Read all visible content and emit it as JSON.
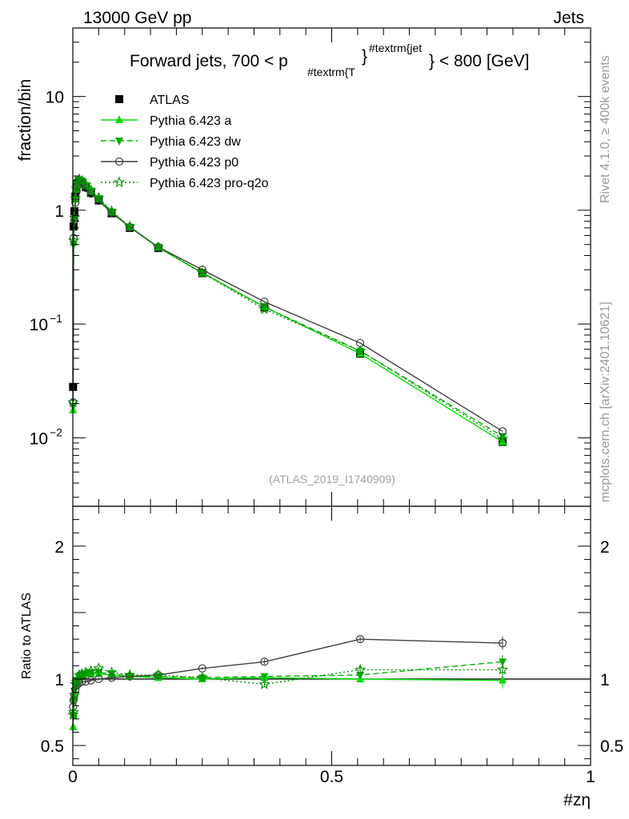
{
  "header": {
    "left": "13000 GeV pp",
    "right": "Jets",
    "title_main": "Forward jets, 700 < p",
    "title_sub": "#textrm{T",
    "title_sup": "#textrm{jet",
    "title_end": "} < 800 [GeV]",
    "title_brace": "}",
    "right_side_top": "Rivet 4.1.0, ≥ 400k events",
    "right_side_bottom": "mcplots.cern.ch [arXiv:2401.10621]",
    "analysis_tag": "(ATLAS_2019_I1740909)"
  },
  "chart_data": [
    {
      "type": "line",
      "scale": "log",
      "ylabel": "fraction/bin",
      "ylim": [
        0.0025,
        40
      ],
      "y_ticks": [
        {
          "v": 10,
          "base": "10",
          "exp": ""
        },
        {
          "v": 1,
          "base": "1",
          "exp": ""
        },
        {
          "v": 0.1,
          "base": "10",
          "exp": "−1"
        },
        {
          "v": 0.01,
          "base": "10",
          "exp": "−2"
        }
      ],
      "xlim": [
        0,
        1
      ],
      "legend": {
        "position": "top-left"
      },
      "series": [
        {
          "name": "ATLAS",
          "color": "#000000",
          "marker": "square",
          "x": [
            0.0005,
            0.0015,
            0.003,
            0.005,
            0.007,
            0.009,
            0.0125,
            0.0175,
            0.025,
            0.035,
            0.05,
            0.075,
            0.11,
            0.165,
            0.25,
            0.37,
            0.555,
            0.83
          ],
          "y": [
            0.028,
            0.72,
            0.98,
            1.32,
            1.58,
            1.72,
            1.82,
            1.74,
            1.6,
            1.42,
            1.22,
            0.94,
            0.7,
            0.465,
            0.28,
            0.14,
            0.055,
            0.0092
          ]
        },
        {
          "name": "Pythia 6.423 a",
          "color": "#00e000",
          "marker": "triangle-up",
          "dash": "",
          "x": [
            0.0005,
            0.0015,
            0.003,
            0.005,
            0.007,
            0.009,
            0.0125,
            0.0175,
            0.025,
            0.035,
            0.05,
            0.075,
            0.11,
            0.165,
            0.25,
            0.37,
            0.555,
            0.83
          ],
          "y": [
            0.0175,
            0.52,
            0.86,
            1.25,
            1.52,
            1.7,
            1.85,
            1.8,
            1.66,
            1.47,
            1.26,
            0.97,
            0.71,
            0.47,
            0.281,
            0.142,
            0.055,
            0.0092
          ]
        },
        {
          "name": "Pythia 6.423 dw",
          "color": "#00b000",
          "marker": "triangle-down",
          "dash": "7,4",
          "x": [
            0.0005,
            0.0015,
            0.003,
            0.005,
            0.007,
            0.009,
            0.0125,
            0.0175,
            0.025,
            0.035,
            0.05,
            0.075,
            0.11,
            0.165,
            0.25,
            0.37,
            0.555,
            0.83
          ],
          "y": [
            0.019,
            0.5,
            0.84,
            1.24,
            1.52,
            1.7,
            1.85,
            1.8,
            1.66,
            1.48,
            1.27,
            0.97,
            0.71,
            0.47,
            0.282,
            0.141,
            0.058,
            0.0103
          ]
        },
        {
          "name": "Pythia 6.423 p0",
          "color": "#404040",
          "marker": "circle-open",
          "dash": "",
          "x": [
            0.0005,
            0.0015,
            0.003,
            0.005,
            0.007,
            0.009,
            0.0125,
            0.0175,
            0.025,
            0.035,
            0.05,
            0.075,
            0.11,
            0.165,
            0.25,
            0.37,
            0.555,
            0.83
          ],
          "y": [
            0.0205,
            0.57,
            0.82,
            1.17,
            1.45,
            1.63,
            1.77,
            1.7,
            1.57,
            1.4,
            1.21,
            0.95,
            0.71,
            0.475,
            0.3,
            0.157,
            0.068,
            0.0114
          ]
        },
        {
          "name": "Pythia 6.423 pro-q2o",
          "color": "#009000",
          "marker": "star-open",
          "dash": "2,3",
          "x": [
            0.0005,
            0.0015,
            0.003,
            0.005,
            0.007,
            0.009,
            0.0125,
            0.0175,
            0.025,
            0.035,
            0.05,
            0.075,
            0.11,
            0.165,
            0.25,
            0.37,
            0.555,
            0.83
          ],
          "y": [
            0.0205,
            0.54,
            0.86,
            1.27,
            1.55,
            1.73,
            1.87,
            1.82,
            1.68,
            1.5,
            1.29,
            0.98,
            0.72,
            0.475,
            0.282,
            0.135,
            0.058,
            0.0098
          ]
        }
      ]
    },
    {
      "type": "line",
      "scale": "linear",
      "ylabel": "Ratio to ATLAS",
      "ylim": [
        0.35,
        2.3
      ],
      "y_ticks": [
        {
          "v": 0.5,
          "label": "0.5"
        },
        {
          "v": 1,
          "label": "1"
        },
        {
          "v": 2,
          "label": "2"
        }
      ],
      "xlabel": "#zη",
      "xlim": [
        0,
        1
      ],
      "x_ticks": [
        {
          "v": 0,
          "label": "0"
        },
        {
          "v": 0.5,
          "label": "0.5"
        },
        {
          "v": 1,
          "label": "1"
        }
      ],
      "reference": 1,
      "band": 0.02,
      "series": [
        {
          "name": "Pythia 6.423 a",
          "color": "#00e000",
          "marker": "triangle-up",
          "dash": "",
          "x": [
            0.0005,
            0.0015,
            0.003,
            0.005,
            0.007,
            0.009,
            0.0125,
            0.0175,
            0.025,
            0.035,
            0.05,
            0.075,
            0.11,
            0.165,
            0.25,
            0.37,
            0.555,
            0.83
          ],
          "y": [
            0.64,
            0.73,
            0.88,
            0.95,
            0.97,
            0.99,
            1.02,
            1.03,
            1.04,
            1.04,
            1.04,
            1.03,
            1.02,
            1.01,
            1.0,
            1.01,
            1.0,
            0.99
          ],
          "err": [
            0.04,
            0.03,
            0.02,
            0.01,
            0.01,
            0.01,
            0.01,
            0.01,
            0.01,
            0.01,
            0.01,
            0.01,
            0.01,
            0.01,
            0.01,
            0.02,
            0.03,
            0.06
          ]
        },
        {
          "name": "Pythia 6.423 dw",
          "color": "#00b000",
          "marker": "triangle-down",
          "dash": "7,4",
          "x": [
            0.0005,
            0.0015,
            0.003,
            0.005,
            0.007,
            0.009,
            0.0125,
            0.0175,
            0.025,
            0.035,
            0.05,
            0.075,
            0.11,
            0.165,
            0.25,
            0.37,
            0.555,
            0.83
          ],
          "y": [
            0.73,
            0.83,
            0.91,
            0.95,
            0.97,
            0.99,
            1.02,
            1.03,
            1.04,
            1.05,
            1.05,
            1.04,
            1.02,
            1.02,
            1.01,
            1.02,
            1.03,
            1.13
          ],
          "err": [
            0.04,
            0.03,
            0.02,
            0.01,
            0.01,
            0.01,
            0.01,
            0.01,
            0.01,
            0.01,
            0.01,
            0.01,
            0.01,
            0.01,
            0.01,
            0.02,
            0.03,
            0.05
          ]
        },
        {
          "name": "Pythia 6.423 p0",
          "color": "#404040",
          "marker": "circle-open",
          "dash": "",
          "x": [
            0.0005,
            0.0015,
            0.003,
            0.005,
            0.007,
            0.009,
            0.0125,
            0.0175,
            0.025,
            0.035,
            0.05,
            0.075,
            0.11,
            0.165,
            0.25,
            0.37,
            0.555,
            0.83
          ],
          "y": [
            0.79,
            0.84,
            0.88,
            0.92,
            0.95,
            0.96,
            0.97,
            0.98,
            0.98,
            0.99,
            1.0,
            1.01,
            1.02,
            1.03,
            1.08,
            1.13,
            1.3,
            1.27
          ],
          "err": [
            0.04,
            0.03,
            0.02,
            0.01,
            0.01,
            0.01,
            0.01,
            0.01,
            0.01,
            0.01,
            0.01,
            0.01,
            0.01,
            0.01,
            0.01,
            0.02,
            0.02,
            0.05
          ]
        },
        {
          "name": "Pythia 6.423 pro-q2o",
          "color": "#009000",
          "marker": "star-open",
          "dash": "2,3",
          "x": [
            0.0005,
            0.0015,
            0.003,
            0.005,
            0.007,
            0.009,
            0.0125,
            0.0175,
            0.025,
            0.035,
            0.05,
            0.075,
            0.11,
            0.165,
            0.25,
            0.37,
            0.555,
            0.83
          ],
          "y": [
            0.73,
            0.75,
            0.88,
            0.96,
            0.98,
            1.0,
            1.03,
            1.04,
            1.05,
            1.06,
            1.08,
            1.05,
            1.03,
            1.03,
            1.01,
            0.96,
            1.07,
            1.07
          ],
          "err": [
            0.04,
            0.03,
            0.02,
            0.01,
            0.01,
            0.01,
            0.01,
            0.01,
            0.01,
            0.01,
            0.01,
            0.01,
            0.01,
            0.01,
            0.01,
            0.02,
            0.04,
            0.06
          ]
        }
      ]
    }
  ]
}
